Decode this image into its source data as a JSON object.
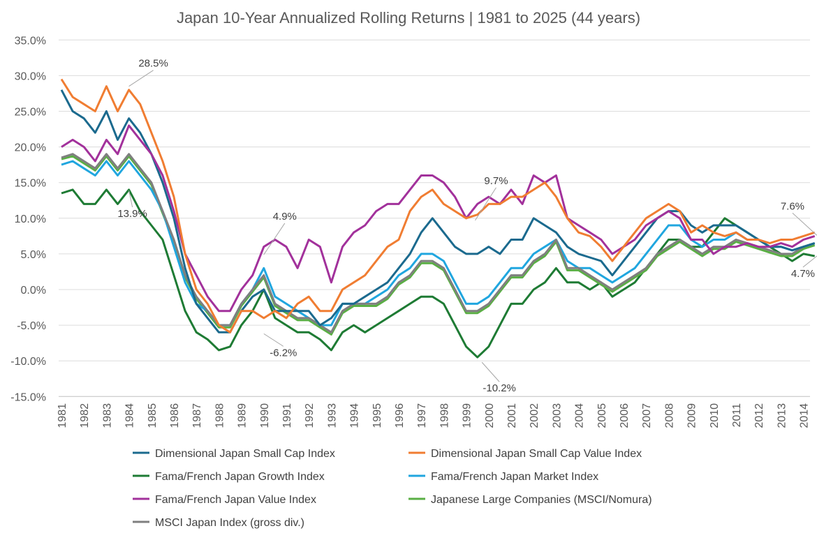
{
  "chart_data": {
    "type": "line",
    "title": "Japan 10-Year Annualized Rolling Returns  |  1981 to 2025 (44 years)",
    "xlabel": "",
    "ylabel": "",
    "ylim": [
      -15,
      35
    ],
    "y_ticks": [
      "35.0%",
      "30.0%",
      "25.0%",
      "20.0%",
      "15.0%",
      "10.0%",
      "5.0%",
      "0.0%",
      "-5.0%",
      "-10.0%",
      "-15.0%"
    ],
    "y_tick_values": [
      35,
      30,
      25,
      20,
      15,
      10,
      5,
      0,
      -5,
      -10,
      -15
    ],
    "x_ticks": [
      "1981",
      "1982",
      "1983",
      "1984",
      "1985",
      "1986",
      "1987",
      "1988",
      "1989",
      "1990",
      "1991",
      "1992",
      "1993",
      "1994",
      "1995",
      "1996",
      "1997",
      "1998",
      "1999",
      "2000",
      "2001",
      "2002",
      "2003",
      "2004",
      "2005",
      "2006",
      "2007",
      "2008",
      "2009",
      "2010",
      "2011",
      "2012",
      "2013",
      "2014"
    ],
    "xlim": [
      1981,
      2014.6
    ],
    "grid": true,
    "legend_placement": "bottom",
    "x": [
      1981,
      1981.5,
      1982,
      1982.5,
      1983,
      1983.5,
      1984,
      1984.5,
      1985,
      1985.5,
      1986,
      1986.5,
      1987,
      1987.5,
      1988,
      1988.5,
      1989,
      1989.5,
      1990,
      1990.5,
      1991,
      1991.5,
      1992,
      1992.5,
      1993,
      1993.5,
      1994,
      1994.5,
      1995,
      1995.5,
      1996,
      1996.5,
      1997,
      1997.5,
      1998,
      1998.5,
      1999,
      1999.5,
      2000,
      2000.5,
      2001,
      2001.5,
      2002,
      2002.5,
      2003,
      2003.5,
      2004,
      2004.5,
      2005,
      2005.5,
      2006,
      2006.5,
      2007,
      2007.5,
      2008,
      2008.5,
      2009,
      2009.5,
      2010,
      2010.5,
      2011,
      2011.5,
      2012,
      2012.5,
      2013,
      2013.5,
      2014,
      2014.5
    ],
    "series": [
      {
        "name": "Dimensional Japan Small Cap Index",
        "color": "#1b6a8e",
        "values": [
          28,
          25,
          24,
          22,
          25,
          21,
          24,
          22,
          19,
          15,
          10,
          3,
          -2,
          -4,
          -6,
          -6,
          -3,
          -1,
          0,
          -3,
          -3,
          -3,
          -3,
          -5,
          -4,
          -2,
          -2,
          -1,
          0,
          1,
          3,
          5,
          8,
          10,
          8,
          6,
          5,
          5,
          6,
          5,
          7,
          7,
          10,
          9,
          8,
          6,
          5,
          4.5,
          4,
          2,
          4,
          6,
          8,
          10,
          11,
          11,
          9,
          8,
          9,
          9,
          9,
          8,
          7,
          6,
          6,
          5.5,
          6,
          6.5
        ]
      },
      {
        "name": "Dimensional Japan Small Cap Value Index",
        "color": "#f07d32",
        "values": [
          29.5,
          27,
          26,
          25,
          28.5,
          25,
          28,
          26,
          22,
          18,
          13,
          5,
          0,
          -2,
          -5,
          -6,
          -3,
          -3,
          -4,
          -3,
          -4,
          -2,
          -1,
          -3,
          -3,
          0,
          1,
          2,
          4,
          6,
          7,
          11,
          13,
          14,
          12,
          11,
          10,
          10.5,
          12,
          12,
          13,
          13,
          14,
          15,
          13,
          10,
          8,
          7.5,
          6,
          4,
          6,
          8,
          10,
          11,
          12,
          11,
          8,
          9,
          8,
          7.5,
          8,
          7,
          7,
          6.5,
          7,
          7,
          7.5,
          8
        ]
      },
      {
        "name": "Fama/French Japan Growth Index",
        "color": "#1e7b34",
        "values": [
          13.5,
          14,
          12,
          12,
          14,
          12,
          14,
          11,
          9,
          7,
          2,
          -3,
          -6,
          -7,
          -8.5,
          -8,
          -5,
          -3,
          0,
          -4,
          -5,
          -6,
          -6,
          -7,
          -8.5,
          -6,
          -5,
          -6,
          -5,
          -4,
          -3,
          -2,
          -1,
          -1,
          -2,
          -5,
          -8,
          -9.5,
          -8,
          -5,
          -2,
          -2,
          0,
          1,
          3,
          1,
          1,
          0,
          1,
          -1,
          0,
          1,
          3,
          5,
          7,
          7,
          6,
          6,
          8,
          10,
          9,
          8,
          7,
          6,
          5,
          4,
          5,
          4.7
        ]
      },
      {
        "name": "Fama/French Japan Market Index",
        "color": "#20a6df",
        "values": [
          17.5,
          18,
          17,
          16,
          18,
          16,
          18,
          16,
          14,
          11,
          6,
          1,
          -2,
          -3,
          -5,
          -5,
          -2,
          0,
          3,
          -1,
          -2,
          -3,
          -4,
          -5,
          -5,
          -2,
          -2,
          -2,
          -1,
          0,
          2,
          3,
          5,
          5,
          4,
          1,
          -2,
          -2,
          -1,
          1,
          3,
          3,
          5,
          6,
          7,
          4,
          3,
          3,
          2,
          1,
          2,
          3,
          5,
          7,
          9,
          9,
          7,
          6,
          7,
          7,
          8,
          7,
          7,
          6,
          6,
          5.5,
          6,
          6.5
        ]
      },
      {
        "name": "Fama/French Japan Value Index",
        "color": "#a2319b",
        "values": [
          20,
          21,
          20,
          18,
          21,
          19,
          23,
          21,
          19,
          16,
          11,
          5,
          2,
          -1,
          -3,
          -3,
          0,
          2,
          6,
          7,
          6,
          3,
          7,
          6,
          1,
          6,
          8,
          9,
          11,
          12,
          12,
          14,
          16,
          16,
          15,
          13,
          10,
          12,
          13,
          12,
          14,
          12,
          16,
          15,
          16,
          10,
          9,
          8,
          7,
          5,
          6,
          7,
          9,
          10,
          11,
          10,
          7,
          7,
          5,
          6,
          6,
          6.5,
          6,
          6,
          6.5,
          6,
          7,
          7.5
        ]
      },
      {
        "name": "Japanese Large Companies (MSCI/Nomura)",
        "color": "#5aaf44",
        "values": [
          18.3,
          18.7,
          17.7,
          16.7,
          18.7,
          16.7,
          18.7,
          16.7,
          14.7,
          10.7,
          6.7,
          1.7,
          -1.3,
          -3.3,
          -5.3,
          -5.3,
          -2.3,
          -0.3,
          1.7,
          -2.3,
          -3.3,
          -4.3,
          -4.3,
          -5.3,
          -6.3,
          -3.3,
          -2.3,
          -2.3,
          -2.3,
          -1.3,
          0.7,
          1.7,
          3.7,
          3.7,
          2.7,
          -0.3,
          -3.3,
          -3.3,
          -2.3,
          -0.3,
          1.7,
          1.7,
          3.7,
          4.7,
          6.7,
          2.7,
          2.7,
          1.7,
          0.7,
          -0.3,
          0.7,
          1.7,
          2.7,
          4.7,
          5.7,
          6.7,
          5.7,
          4.7,
          5.7,
          5.7,
          6.7,
          6.2,
          5.7,
          5.2,
          4.7,
          4.7,
          5.7,
          6.2
        ]
      },
      {
        "name": "MSCI Japan Index (gross div.)",
        "color": "#7f7f7f",
        "values": [
          18.5,
          19,
          18,
          17,
          19,
          17,
          19,
          17,
          15,
          11,
          7,
          2,
          -1,
          -3,
          -5,
          -5,
          -2,
          0,
          2,
          -2,
          -3,
          -4,
          -4,
          -5,
          -6,
          -3,
          -2,
          -2,
          -2,
          -1,
          1,
          2,
          4,
          4,
          3,
          0,
          -3,
          -3,
          -2,
          0,
          2,
          2,
          4,
          5,
          7,
          3,
          3,
          2,
          1,
          0,
          1,
          2,
          3,
          5,
          6,
          7,
          6,
          5,
          6,
          6,
          7,
          6.5,
          6,
          5.5,
          5,
          5,
          6,
          6.5
        ]
      }
    ],
    "annotations": [
      {
        "text": "28.5%",
        "x": 1984.0,
        "y": 28.5
      },
      {
        "text": "13.9%",
        "x": 1984.0,
        "y": 13.9
      },
      {
        "text": "4.9%",
        "x": 1990.0,
        "y": 4.9
      },
      {
        "text": "-6.2%",
        "x": 1990.0,
        "y": -6.2
      },
      {
        "text": "9.7%",
        "x": 1999.4,
        "y": 9.7
      },
      {
        "text": "-10.2%",
        "x": 1999.7,
        "y": -10.2
      },
      {
        "text": "7.6%",
        "x": 2014.6,
        "y": 7.6
      },
      {
        "text": "4.7%",
        "x": 2014.6,
        "y": 4.7
      }
    ]
  }
}
